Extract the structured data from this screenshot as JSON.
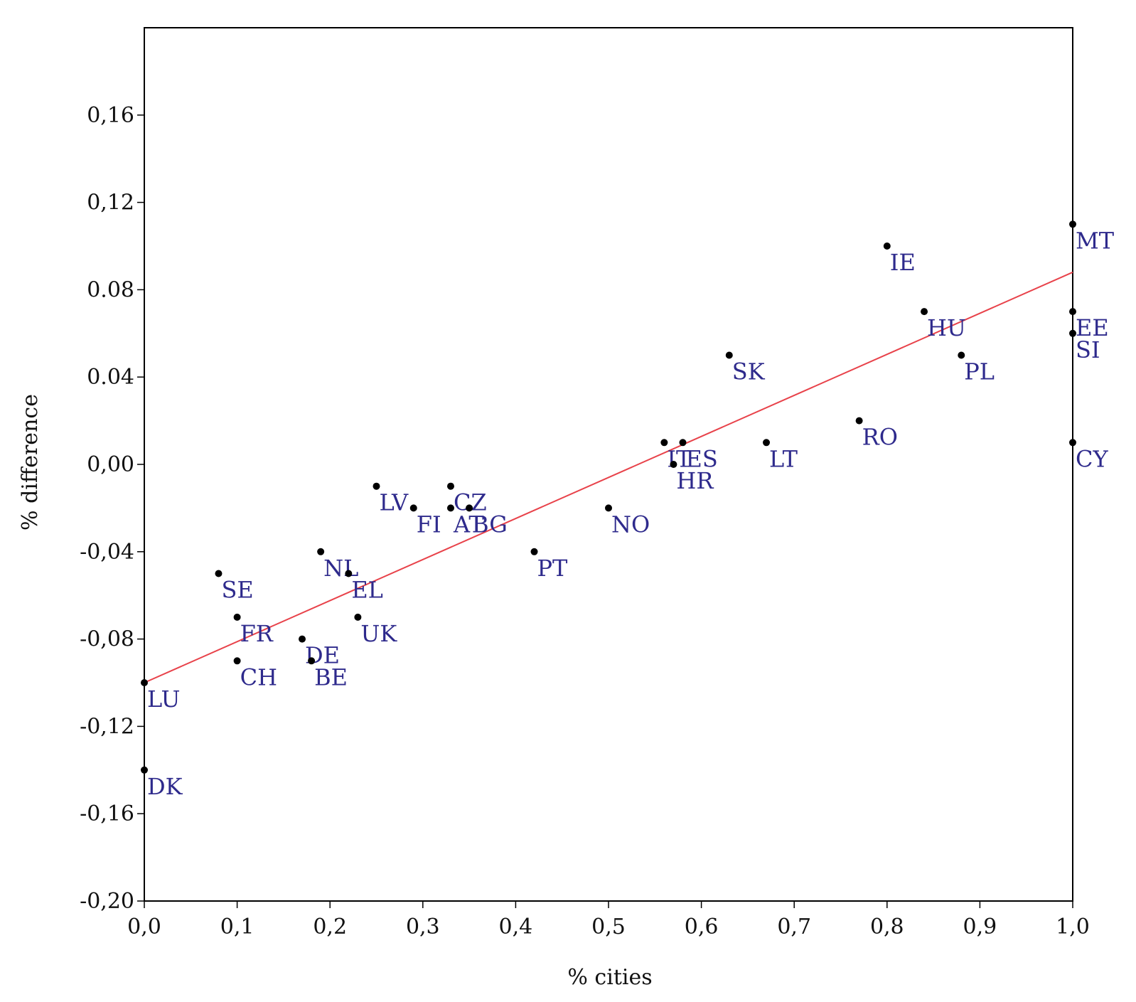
{
  "chart_data": {
    "type": "scatter",
    "xlabel": "% cities",
    "ylabel": "% difference",
    "xlim": [
      0,
      1
    ],
    "ylim": [
      -0.2,
      0.2
    ],
    "x_ticks": [
      {
        "v": 0.0,
        "label": "0,0"
      },
      {
        "v": 0.1,
        "label": "0,1"
      },
      {
        "v": 0.2,
        "label": "0,2"
      },
      {
        "v": 0.3,
        "label": "0,3"
      },
      {
        "v": 0.4,
        "label": "0,4"
      },
      {
        "v": 0.5,
        "label": "0,5"
      },
      {
        "v": 0.6,
        "label": "0,6"
      },
      {
        "v": 0.7,
        "label": "0,7"
      },
      {
        "v": 0.8,
        "label": "0,8"
      },
      {
        "v": 0.9,
        "label": "0,9"
      },
      {
        "v": 1.0,
        "label": "1,0"
      }
    ],
    "y_ticks": [
      {
        "v": 0.16,
        "label": "0,16"
      },
      {
        "v": 0.12,
        "label": "0,12"
      },
      {
        "v": 0.08,
        "label": "0.08"
      },
      {
        "v": 0.04,
        "label": "0.04"
      },
      {
        "v": 0.0,
        "label": "0,00"
      },
      {
        "v": -0.04,
        "label": "-0,04"
      },
      {
        "v": -0.08,
        "label": "-0,08"
      },
      {
        "v": -0.12,
        "label": "-0,12"
      },
      {
        "v": -0.16,
        "label": "-0,16"
      },
      {
        "v": -0.2,
        "label": "-0,20"
      }
    ],
    "grid": false,
    "fit_line": {
      "x": [
        0,
        1
      ],
      "y": [
        -0.1,
        0.088
      ]
    },
    "points": [
      {
        "label": "DK",
        "x": 0.0,
        "y": -0.14
      },
      {
        "label": "LU",
        "x": 0.0,
        "y": -0.1
      },
      {
        "label": "SE",
        "x": 0.08,
        "y": -0.05
      },
      {
        "label": "FR",
        "x": 0.1,
        "y": -0.07
      },
      {
        "label": "CH",
        "x": 0.1,
        "y": -0.09
      },
      {
        "label": "DE",
        "x": 0.17,
        "y": -0.08
      },
      {
        "label": "BE",
        "x": 0.18,
        "y": -0.09
      },
      {
        "label": "NL",
        "x": 0.19,
        "y": -0.04
      },
      {
        "label": "EL",
        "x": 0.22,
        "y": -0.05
      },
      {
        "label": "UK",
        "x": 0.23,
        "y": -0.07
      },
      {
        "label": "LV",
        "x": 0.25,
        "y": -0.01
      },
      {
        "label": "FI",
        "x": 0.29,
        "y": -0.02
      },
      {
        "label": "CZ",
        "x": 0.33,
        "y": -0.01
      },
      {
        "label": "AT",
        "x": 0.33,
        "y": -0.02
      },
      {
        "label": "BG",
        "x": 0.35,
        "y": -0.02
      },
      {
        "label": "PT",
        "x": 0.42,
        "y": -0.04
      },
      {
        "label": "NO",
        "x": 0.5,
        "y": -0.02
      },
      {
        "label": "IT",
        "x": 0.56,
        "y": 0.01
      },
      {
        "label": "ES",
        "x": 0.58,
        "y": 0.01
      },
      {
        "label": "HR",
        "x": 0.57,
        "y": 0.0
      },
      {
        "label": "SK",
        "x": 0.63,
        "y": 0.05
      },
      {
        "label": "LT",
        "x": 0.67,
        "y": 0.01
      },
      {
        "label": "RO",
        "x": 0.77,
        "y": 0.02
      },
      {
        "label": "IE",
        "x": 0.8,
        "y": 0.1
      },
      {
        "label": "HU",
        "x": 0.84,
        "y": 0.07
      },
      {
        "label": "PL",
        "x": 0.88,
        "y": 0.05
      },
      {
        "label": "MT",
        "x": 1.0,
        "y": 0.11
      },
      {
        "label": "EE",
        "x": 1.0,
        "y": 0.07
      },
      {
        "label": "SI",
        "x": 1.0,
        "y": 0.06
      },
      {
        "label": "CY",
        "x": 1.0,
        "y": 0.01
      }
    ],
    "colors": {
      "points": "#000000",
      "labels": "#2e2a8c",
      "fit_line": "#e8424a"
    }
  }
}
